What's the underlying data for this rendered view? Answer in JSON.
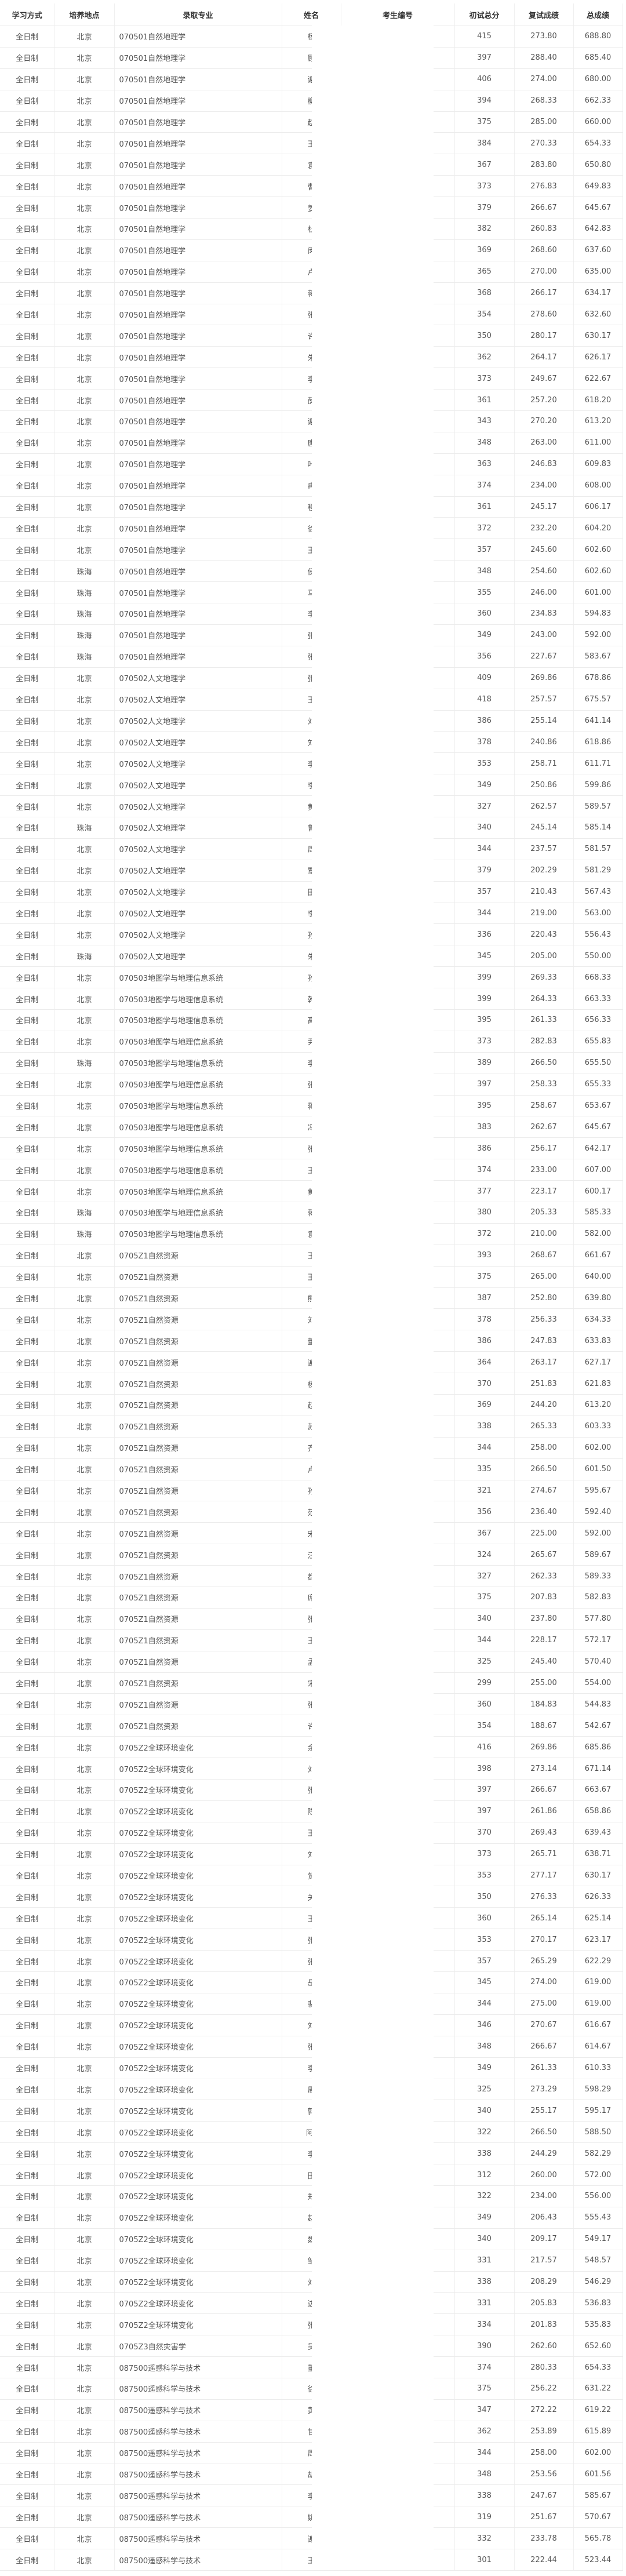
{
  "headers": [
    "学习方式",
    "培养地点",
    "录取专业",
    "姓名",
    "考生编号",
    "初试总分",
    "复试成绩",
    "总成绩"
  ],
  "rows": [
    [
      "全日制",
      "北京",
      "070501自然地理学",
      "杨",
      "",
      "415",
      "273.80",
      "688.80"
    ],
    [
      "全日制",
      "北京",
      "070501自然地理学",
      "顾",
      "",
      "397",
      "288.40",
      "685.40"
    ],
    [
      "全日制",
      "北京",
      "070501自然地理学",
      "谢",
      "",
      "406",
      "274.00",
      "680.00"
    ],
    [
      "全日制",
      "北京",
      "070501自然地理学",
      "柳",
      "",
      "394",
      "268.33",
      "662.33"
    ],
    [
      "全日制",
      "北京",
      "070501自然地理学",
      "赵",
      "",
      "375",
      "285.00",
      "660.00"
    ],
    [
      "全日制",
      "北京",
      "070501自然地理学",
      "王",
      "",
      "384",
      "270.33",
      "654.33"
    ],
    [
      "全日制",
      "北京",
      "070501自然地理学",
      "袁",
      "",
      "367",
      "283.80",
      "650.80"
    ],
    [
      "全日制",
      "北京",
      "070501自然地理学",
      "曹",
      "",
      "373",
      "276.83",
      "649.83"
    ],
    [
      "全日制",
      "北京",
      "070501自然地理学",
      "姜",
      "",
      "379",
      "266.67",
      "645.67"
    ],
    [
      "全日制",
      "北京",
      "070501自然地理学",
      "杜",
      "",
      "382",
      "260.83",
      "642.83"
    ],
    [
      "全日制",
      "北京",
      "070501自然地理学",
      "闵",
      "",
      "369",
      "268.60",
      "637.60"
    ],
    [
      "全日制",
      "北京",
      "070501自然地理学",
      "卢",
      "",
      "365",
      "270.00",
      "635.00"
    ],
    [
      "全日制",
      "北京",
      "070501自然地理学",
      "蒋",
      "",
      "368",
      "266.17",
      "634.17"
    ],
    [
      "全日制",
      "北京",
      "070501自然地理学",
      "张",
      "",
      "354",
      "278.60",
      "632.60"
    ],
    [
      "全日制",
      "北京",
      "070501自然地理学",
      "许",
      "",
      "350",
      "280.17",
      "630.17"
    ],
    [
      "全日制",
      "北京",
      "070501自然地理学",
      "朱",
      "",
      "362",
      "264.17",
      "626.17"
    ],
    [
      "全日制",
      "北京",
      "070501自然地理学",
      "李",
      "",
      "373",
      "249.67",
      "622.67"
    ],
    [
      "全日制",
      "北京",
      "070501自然地理学",
      "薛",
      "",
      "361",
      "257.20",
      "618.20"
    ],
    [
      "全日制",
      "北京",
      "070501自然地理学",
      "谢",
      "",
      "343",
      "270.20",
      "613.20"
    ],
    [
      "全日制",
      "北京",
      "070501自然地理学",
      "唐",
      "",
      "348",
      "263.00",
      "611.00"
    ],
    [
      "全日制",
      "北京",
      "070501自然地理学",
      "叶",
      "",
      "363",
      "246.83",
      "609.83"
    ],
    [
      "全日制",
      "北京",
      "070501自然地理学",
      "冉",
      "",
      "374",
      "234.00",
      "608.00"
    ],
    [
      "全日制",
      "北京",
      "070501自然地理学",
      "程",
      "",
      "361",
      "245.17",
      "606.17"
    ],
    [
      "全日制",
      "北京",
      "070501自然地理学",
      "徐",
      "",
      "372",
      "232.20",
      "604.20"
    ],
    [
      "全日制",
      "北京",
      "070501自然地理学",
      "王",
      "",
      "357",
      "245.60",
      "602.60"
    ],
    [
      "全日制",
      "珠海",
      "070501自然地理学",
      "侯",
      "",
      "348",
      "254.60",
      "602.60"
    ],
    [
      "全日制",
      "珠海",
      "070501自然地理学",
      "马",
      "",
      "355",
      "246.00",
      "601.00"
    ],
    [
      "全日制",
      "珠海",
      "070501自然地理学",
      "李",
      "",
      "360",
      "234.83",
      "594.83"
    ],
    [
      "全日制",
      "珠海",
      "070501自然地理学",
      "张",
      "",
      "349",
      "243.00",
      "592.00"
    ],
    [
      "全日制",
      "珠海",
      "070501自然地理学",
      "张",
      "",
      "356",
      "227.67",
      "583.67"
    ],
    [
      "全日制",
      "北京",
      "070502人文地理学",
      "张",
      "",
      "409",
      "269.86",
      "678.86"
    ],
    [
      "全日制",
      "北京",
      "070502人文地理学",
      "王",
      "",
      "418",
      "257.57",
      "675.57"
    ],
    [
      "全日制",
      "北京",
      "070502人文地理学",
      "刘",
      "",
      "386",
      "255.14",
      "641.14"
    ],
    [
      "全日制",
      "北京",
      "070502人文地理学",
      "刘",
      "",
      "378",
      "240.86",
      "618.86"
    ],
    [
      "全日制",
      "北京",
      "070502人文地理学",
      "李",
      "",
      "353",
      "258.71",
      "611.71"
    ],
    [
      "全日制",
      "北京",
      "070502人文地理学",
      "李",
      "",
      "349",
      "250.86",
      "599.86"
    ],
    [
      "全日制",
      "北京",
      "070502人文地理学",
      "黄",
      "",
      "327",
      "262.57",
      "589.57"
    ],
    [
      "全日制",
      "珠海",
      "070502人文地理学",
      "鲁",
      "",
      "340",
      "245.14",
      "585.14"
    ],
    [
      "全日制",
      "北京",
      "070502人文地理学",
      "周",
      "",
      "344",
      "237.57",
      "581.57"
    ],
    [
      "全日制",
      "北京",
      "070502人文地理学",
      "覃",
      "",
      "379",
      "202.29",
      "581.29"
    ],
    [
      "全日制",
      "北京",
      "070502人文地理学",
      "田",
      "",
      "357",
      "210.43",
      "567.43"
    ],
    [
      "全日制",
      "北京",
      "070502人文地理学",
      "李",
      "",
      "344",
      "219.00",
      "563.00"
    ],
    [
      "全日制",
      "北京",
      "070502人文地理学",
      "孙",
      "",
      "336",
      "220.43",
      "556.43"
    ],
    [
      "全日制",
      "珠海",
      "070502人文地理学",
      "朱",
      "",
      "345",
      "205.00",
      "550.00"
    ],
    [
      "全日制",
      "北京",
      "070503地图学与地理信息系统",
      "孙",
      "",
      "399",
      "269.33",
      "668.33"
    ],
    [
      "全日制",
      "北京",
      "070503地图学与地理信息系统",
      "韩",
      "",
      "399",
      "264.33",
      "663.33"
    ],
    [
      "全日制",
      "北京",
      "070503地图学与地理信息系统",
      "高",
      "",
      "395",
      "261.33",
      "656.33"
    ],
    [
      "全日制",
      "北京",
      "070503地图学与地理信息系统",
      "尹",
      "",
      "373",
      "282.83",
      "655.83"
    ],
    [
      "全日制",
      "珠海",
      "070503地图学与地理信息系统",
      "李",
      "",
      "389",
      "266.50",
      "655.50"
    ],
    [
      "全日制",
      "北京",
      "070503地图学与地理信息系统",
      "张",
      "",
      "397",
      "258.33",
      "655.33"
    ],
    [
      "全日制",
      "北京",
      "070503地图学与地理信息系统",
      "蒋",
      "",
      "395",
      "258.67",
      "653.67"
    ],
    [
      "全日制",
      "北京",
      "070503地图学与地理信息系统",
      "冯",
      "",
      "383",
      "262.67",
      "645.67"
    ],
    [
      "全日制",
      "北京",
      "070503地图学与地理信息系统",
      "张",
      "",
      "386",
      "256.17",
      "642.17"
    ],
    [
      "全日制",
      "北京",
      "070503地图学与地理信息系统",
      "王",
      "",
      "374",
      "233.00",
      "607.00"
    ],
    [
      "全日制",
      "北京",
      "070503地图学与地理信息系统",
      "黄",
      "",
      "377",
      "223.17",
      "600.17"
    ],
    [
      "全日制",
      "珠海",
      "070503地图学与地理信息系统",
      "蒋",
      "",
      "380",
      "205.33",
      "585.33"
    ],
    [
      "全日制",
      "珠海",
      "070503地图学与地理信息系统",
      "袁",
      "",
      "372",
      "210.00",
      "582.00"
    ],
    [
      "全日制",
      "北京",
      "0705Z1自然资源",
      "王",
      "",
      "393",
      "268.67",
      "661.67"
    ],
    [
      "全日制",
      "北京",
      "0705Z1自然资源",
      "王",
      "",
      "375",
      "265.00",
      "640.00"
    ],
    [
      "全日制",
      "北京",
      "0705Z1自然资源",
      "熊",
      "",
      "387",
      "252.80",
      "639.80"
    ],
    [
      "全日制",
      "北京",
      "0705Z1自然资源",
      "刘",
      "",
      "378",
      "256.33",
      "634.33"
    ],
    [
      "全日制",
      "北京",
      "0705Z1自然资源",
      "董",
      "",
      "386",
      "247.83",
      "633.83"
    ],
    [
      "全日制",
      "北京",
      "0705Z1自然资源",
      "谢",
      "",
      "364",
      "263.17",
      "627.17"
    ],
    [
      "全日制",
      "北京",
      "0705Z1自然资源",
      "杨",
      "",
      "370",
      "251.83",
      "621.83"
    ],
    [
      "全日制",
      "北京",
      "0705Z1自然资源",
      "赵",
      "",
      "369",
      "244.20",
      "613.20"
    ],
    [
      "全日制",
      "北京",
      "0705Z1自然资源",
      "苏",
      "",
      "338",
      "265.33",
      "603.33"
    ],
    [
      "全日制",
      "北京",
      "0705Z1自然资源",
      "齐",
      "",
      "344",
      "258.00",
      "602.00"
    ],
    [
      "全日制",
      "北京",
      "0705Z1自然资源",
      "卢",
      "",
      "335",
      "266.50",
      "601.50"
    ],
    [
      "全日制",
      "北京",
      "0705Z1自然资源",
      "孙",
      "",
      "321",
      "274.67",
      "595.67"
    ],
    [
      "全日制",
      "北京",
      "0705Z1自然资源",
      "范",
      "",
      "356",
      "236.40",
      "592.40"
    ],
    [
      "全日制",
      "北京",
      "0705Z1自然资源",
      "宋",
      "",
      "367",
      "225.00",
      "592.00"
    ],
    [
      "全日制",
      "北京",
      "0705Z1自然资源",
      "汪",
      "",
      "324",
      "265.67",
      "589.67"
    ],
    [
      "全日制",
      "北京",
      "0705Z1自然资源",
      "都",
      "",
      "327",
      "262.33",
      "589.33"
    ],
    [
      "全日制",
      "北京",
      "0705Z1自然资源",
      "席",
      "",
      "375",
      "207.83",
      "582.83"
    ],
    [
      "全日制",
      "北京",
      "0705Z1自然资源",
      "张",
      "",
      "340",
      "237.80",
      "577.80"
    ],
    [
      "全日制",
      "北京",
      "0705Z1自然资源",
      "王",
      "",
      "344",
      "228.17",
      "572.17"
    ],
    [
      "全日制",
      "北京",
      "0705Z1自然资源",
      "孟",
      "",
      "325",
      "245.40",
      "570.40"
    ],
    [
      "全日制",
      "北京",
      "0705Z1自然资源",
      "宋",
      "",
      "299",
      "255.00",
      "554.00"
    ],
    [
      "全日制",
      "北京",
      "0705Z1自然资源",
      "张",
      "",
      "360",
      "184.83",
      "544.83"
    ],
    [
      "全日制",
      "北京",
      "0705Z1自然资源",
      "许",
      "",
      "354",
      "188.67",
      "542.67"
    ],
    [
      "全日制",
      "北京",
      "0705Z2全球环境变化",
      "余",
      "",
      "416",
      "269.86",
      "685.86"
    ],
    [
      "全日制",
      "北京",
      "0705Z2全球环境变化",
      "刘",
      "",
      "398",
      "273.14",
      "671.14"
    ],
    [
      "全日制",
      "北京",
      "0705Z2全球环境变化",
      "张",
      "",
      "397",
      "266.67",
      "663.67"
    ],
    [
      "全日制",
      "北京",
      "0705Z2全球环境变化",
      "陈",
      "",
      "397",
      "261.86",
      "658.86"
    ],
    [
      "全日制",
      "北京",
      "0705Z2全球环境变化",
      "王",
      "",
      "370",
      "269.43",
      "639.43"
    ],
    [
      "全日制",
      "北京",
      "0705Z2全球环境变化",
      "刘",
      "",
      "373",
      "265.71",
      "638.71"
    ],
    [
      "全日制",
      "北京",
      "0705Z2全球环境变化",
      "贺",
      "",
      "353",
      "277.17",
      "630.17"
    ],
    [
      "全日制",
      "北京",
      "0705Z2全球环境变化",
      "关",
      "",
      "350",
      "276.33",
      "626.33"
    ],
    [
      "全日制",
      "北京",
      "0705Z2全球环境变化",
      "王",
      "",
      "360",
      "265.14",
      "625.14"
    ],
    [
      "全日制",
      "北京",
      "0705Z2全球环境变化",
      "张",
      "",
      "353",
      "270.17",
      "623.17"
    ],
    [
      "全日制",
      "北京",
      "0705Z2全球环境变化",
      "张",
      "",
      "357",
      "265.29",
      "622.29"
    ],
    [
      "全日制",
      "北京",
      "0705Z2全球环境变化",
      "岳",
      "",
      "345",
      "274.00",
      "619.00"
    ],
    [
      "全日制",
      "北京",
      "0705Z2全球环境变化",
      "裴",
      "",
      "344",
      "275.00",
      "619.00"
    ],
    [
      "全日制",
      "北京",
      "0705Z2全球环境变化",
      "刘",
      "",
      "346",
      "270.67",
      "616.67"
    ],
    [
      "全日制",
      "北京",
      "0705Z2全球环境变化",
      "张",
      "",
      "348",
      "266.67",
      "614.67"
    ],
    [
      "全日制",
      "北京",
      "0705Z2全球环境变化",
      "李",
      "",
      "349",
      "261.33",
      "610.33"
    ],
    [
      "全日制",
      "北京",
      "0705Z2全球环境变化",
      "周",
      "",
      "325",
      "273.29",
      "598.29"
    ],
    [
      "全日制",
      "北京",
      "0705Z2全球环境变化",
      "郭",
      "",
      "340",
      "255.17",
      "595.17"
    ],
    [
      "全日制",
      "北京",
      "0705Z2全球环境变化",
      "阿库",
      "",
      "322",
      "266.50",
      "588.50"
    ],
    [
      "全日制",
      "北京",
      "0705Z2全球环境变化",
      "李",
      "",
      "338",
      "244.29",
      "582.29"
    ],
    [
      "全日制",
      "北京",
      "0705Z2全球环境变化",
      "田",
      "",
      "312",
      "260.00",
      "572.00"
    ],
    [
      "全日制",
      "北京",
      "0705Z2全球环境变化",
      "郑",
      "",
      "322",
      "234.00",
      "556.00"
    ],
    [
      "全日制",
      "北京",
      "0705Z2全球环境变化",
      "赵",
      "",
      "349",
      "206.43",
      "555.43"
    ],
    [
      "全日制",
      "北京",
      "0705Z2全球环境变化",
      "魏",
      "",
      "340",
      "209.17",
      "549.17"
    ],
    [
      "全日制",
      "北京",
      "0705Z2全球环境变化",
      "邹",
      "",
      "331",
      "217.57",
      "548.57"
    ],
    [
      "全日制",
      "北京",
      "0705Z2全球环境变化",
      "刘",
      "",
      "338",
      "208.29",
      "546.29"
    ],
    [
      "全日制",
      "北京",
      "0705Z2全球环境变化",
      "边",
      "",
      "331",
      "205.83",
      "536.83"
    ],
    [
      "全日制",
      "北京",
      "0705Z2全球环境变化",
      "张",
      "",
      "334",
      "201.83",
      "535.83"
    ],
    [
      "全日制",
      "北京",
      "0705Z3自然灾害学",
      "吴",
      "",
      "390",
      "262.60",
      "652.60"
    ],
    [
      "全日制",
      "北京",
      "087500遥感科学与技术",
      "董",
      "",
      "374",
      "280.33",
      "654.33"
    ],
    [
      "全日制",
      "北京",
      "087500遥感科学与技术",
      "徐",
      "",
      "375",
      "256.22",
      "631.22"
    ],
    [
      "全日制",
      "北京",
      "087500遥感科学与技术",
      "黄",
      "",
      "347",
      "272.22",
      "619.22"
    ],
    [
      "全日制",
      "北京",
      "087500遥感科学与技术",
      "甘",
      "",
      "362",
      "253.89",
      "615.89"
    ],
    [
      "全日制",
      "北京",
      "087500遥感科学与技术",
      "周",
      "",
      "344",
      "258.00",
      "602.00"
    ],
    [
      "全日制",
      "北京",
      "087500遥感科学与技术",
      "胡",
      "",
      "348",
      "253.56",
      "601.56"
    ],
    [
      "全日制",
      "北京",
      "087500遥感科学与技术",
      "李",
      "",
      "338",
      "247.67",
      "585.67"
    ],
    [
      "全日制",
      "北京",
      "087500遥感科学与技术",
      "姚",
      "",
      "319",
      "251.67",
      "570.67"
    ],
    [
      "全日制",
      "北京",
      "087500遥感科学与技术",
      "谢",
      "",
      "332",
      "233.78",
      "565.78"
    ],
    [
      "全日制",
      "北京",
      "087500遥感科学与技术",
      "王",
      "",
      "301",
      "222.44",
      "523.44"
    ]
  ]
}
